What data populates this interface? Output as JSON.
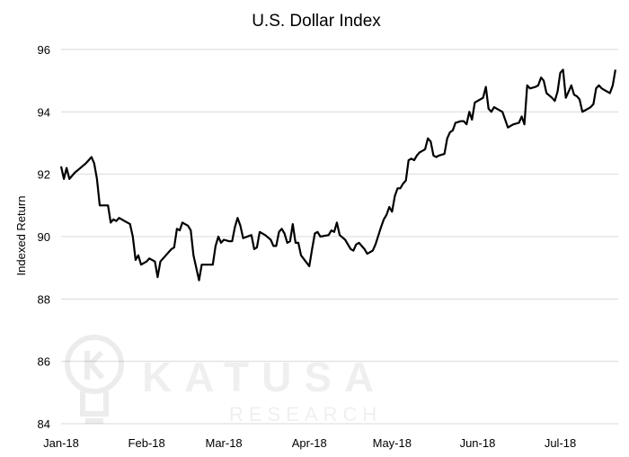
{
  "chart_data": {
    "type": "line",
    "title": "U.S. Dollar Index",
    "xlabel": "",
    "ylabel": "Indexed Return",
    "ylim": [
      84,
      96
    ],
    "yticks": [
      84,
      86,
      88,
      90,
      92,
      94,
      96
    ],
    "xlim": [
      0,
      202
    ],
    "xticks": [
      {
        "label": "Jan-18",
        "day": 0
      },
      {
        "label": "Feb-18",
        "day": 31
      },
      {
        "label": "Mar-18",
        "day": 59
      },
      {
        "label": "Apr-18",
        "day": 90
      },
      {
        "label": "May-18",
        "day": 120
      },
      {
        "label": "Jun-18",
        "day": 151
      },
      {
        "label": "Jul-18",
        "day": 181
      }
    ],
    "grid": true,
    "legend": "none",
    "series": [
      {
        "points": [
          [
            0,
            92.25
          ],
          [
            1,
            91.85
          ],
          [
            2,
            92.2
          ],
          [
            3,
            91.85
          ],
          [
            5,
            92.05
          ],
          [
            7,
            92.2
          ],
          [
            9,
            92.35
          ],
          [
            11,
            92.55
          ],
          [
            12,
            92.35
          ],
          [
            13,
            91.85
          ],
          [
            14,
            91.0
          ],
          [
            17,
            91.0
          ],
          [
            18,
            90.45
          ],
          [
            19,
            90.55
          ],
          [
            20,
            90.5
          ],
          [
            21,
            90.6
          ],
          [
            23,
            90.5
          ],
          [
            25,
            90.4
          ],
          [
            26,
            90.0
          ],
          [
            27,
            89.25
          ],
          [
            28,
            89.4
          ],
          [
            29,
            89.1
          ],
          [
            31,
            89.2
          ],
          [
            32,
            89.3
          ],
          [
            34,
            89.2
          ],
          [
            35,
            88.7
          ],
          [
            36,
            89.2
          ],
          [
            38,
            89.4
          ],
          [
            40,
            89.6
          ],
          [
            41,
            89.65
          ],
          [
            42,
            90.25
          ],
          [
            43,
            90.2
          ],
          [
            44,
            90.45
          ],
          [
            46,
            90.35
          ],
          [
            47,
            90.2
          ],
          [
            48,
            89.4
          ],
          [
            50,
            88.6
          ],
          [
            51,
            89.1
          ],
          [
            55,
            89.1
          ],
          [
            56,
            89.7
          ],
          [
            57,
            90.0
          ],
          [
            58,
            89.8
          ],
          [
            59,
            89.9
          ],
          [
            61,
            89.85
          ],
          [
            62,
            89.85
          ],
          [
            63,
            90.3
          ],
          [
            64,
            90.6
          ],
          [
            65,
            90.35
          ],
          [
            66,
            89.95
          ],
          [
            69,
            90.05
          ],
          [
            70,
            89.6
          ],
          [
            71,
            89.65
          ],
          [
            72,
            90.15
          ],
          [
            74,
            90.05
          ],
          [
            76,
            89.9
          ],
          [
            77,
            89.7
          ],
          [
            78,
            89.7
          ],
          [
            79,
            90.15
          ],
          [
            80,
            90.25
          ],
          [
            81,
            90.1
          ],
          [
            82,
            89.8
          ],
          [
            83,
            89.85
          ],
          [
            84,
            90.4
          ],
          [
            85,
            89.8
          ],
          [
            86,
            89.8
          ],
          [
            87,
            89.4
          ],
          [
            90,
            89.05
          ],
          [
            91,
            89.6
          ],
          [
            92,
            90.1
          ],
          [
            93,
            90.15
          ],
          [
            94,
            90.0
          ],
          [
            97,
            90.05
          ],
          [
            98,
            90.2
          ],
          [
            99,
            90.15
          ],
          [
            100,
            90.45
          ],
          [
            101,
            90.05
          ],
          [
            103,
            89.9
          ],
          [
            105,
            89.6
          ],
          [
            106,
            89.55
          ],
          [
            107,
            89.75
          ],
          [
            108,
            89.8
          ],
          [
            110,
            89.6
          ],
          [
            111,
            89.45
          ],
          [
            113,
            89.55
          ],
          [
            114,
            89.75
          ],
          [
            116,
            90.3
          ],
          [
            117,
            90.55
          ],
          [
            118,
            90.7
          ],
          [
            119,
            90.95
          ],
          [
            120,
            90.8
          ],
          [
            121,
            91.3
          ],
          [
            122,
            91.55
          ],
          [
            123,
            91.55
          ],
          [
            124,
            91.7
          ],
          [
            125,
            91.8
          ],
          [
            126,
            92.45
          ],
          [
            127,
            92.5
          ],
          [
            128,
            92.45
          ],
          [
            129,
            92.6
          ],
          [
            130,
            92.7
          ],
          [
            131,
            92.75
          ],
          [
            132,
            92.8
          ],
          [
            133,
            93.15
          ],
          [
            134,
            93.05
          ],
          [
            135,
            92.6
          ],
          [
            136,
            92.55
          ],
          [
            137,
            92.6
          ],
          [
            139,
            92.65
          ],
          [
            140,
            93.15
          ],
          [
            141,
            93.35
          ],
          [
            142,
            93.4
          ],
          [
            143,
            93.65
          ],
          [
            145,
            93.7
          ],
          [
            146,
            93.7
          ],
          [
            147,
            93.6
          ],
          [
            148,
            94.0
          ],
          [
            149,
            93.75
          ],
          [
            150,
            94.3
          ],
          [
            152,
            94.4
          ],
          [
            153,
            94.45
          ],
          [
            154,
            94.8
          ],
          [
            155,
            94.1
          ],
          [
            156,
            94.0
          ],
          [
            157,
            94.15
          ],
          [
            158,
            94.1
          ],
          [
            160,
            94.0
          ],
          [
            161,
            93.75
          ],
          [
            162,
            93.5
          ],
          [
            163,
            93.55
          ],
          [
            164,
            93.6
          ],
          [
            166,
            93.65
          ],
          [
            167,
            93.85
          ],
          [
            168,
            93.6
          ],
          [
            169,
            94.85
          ],
          [
            170,
            94.75
          ],
          [
            172,
            94.8
          ],
          [
            173,
            94.85
          ],
          [
            174,
            95.1
          ],
          [
            175,
            95.0
          ],
          [
            176,
            94.6
          ],
          [
            178,
            94.45
          ],
          [
            179,
            94.35
          ],
          [
            180,
            94.65
          ],
          [
            181,
            95.25
          ],
          [
            182,
            95.35
          ],
          [
            183,
            94.45
          ],
          [
            184,
            94.65
          ],
          [
            185,
            94.85
          ],
          [
            186,
            94.55
          ],
          [
            187,
            94.5
          ],
          [
            188,
            94.4
          ],
          [
            189,
            94.0
          ],
          [
            190,
            94.05
          ],
          [
            191,
            94.1
          ],
          [
            192,
            94.15
          ],
          [
            193,
            94.25
          ],
          [
            194,
            94.75
          ],
          [
            195,
            94.85
          ],
          [
            196,
            94.75
          ],
          [
            198,
            94.65
          ],
          [
            199,
            94.6
          ],
          [
            200,
            94.85
          ],
          [
            201,
            95.35
          ]
        ]
      }
    ]
  },
  "watermark": {
    "brand": "KATUSA",
    "sub": "RESEARCH",
    "icon": "lightbulb-k-icon"
  }
}
